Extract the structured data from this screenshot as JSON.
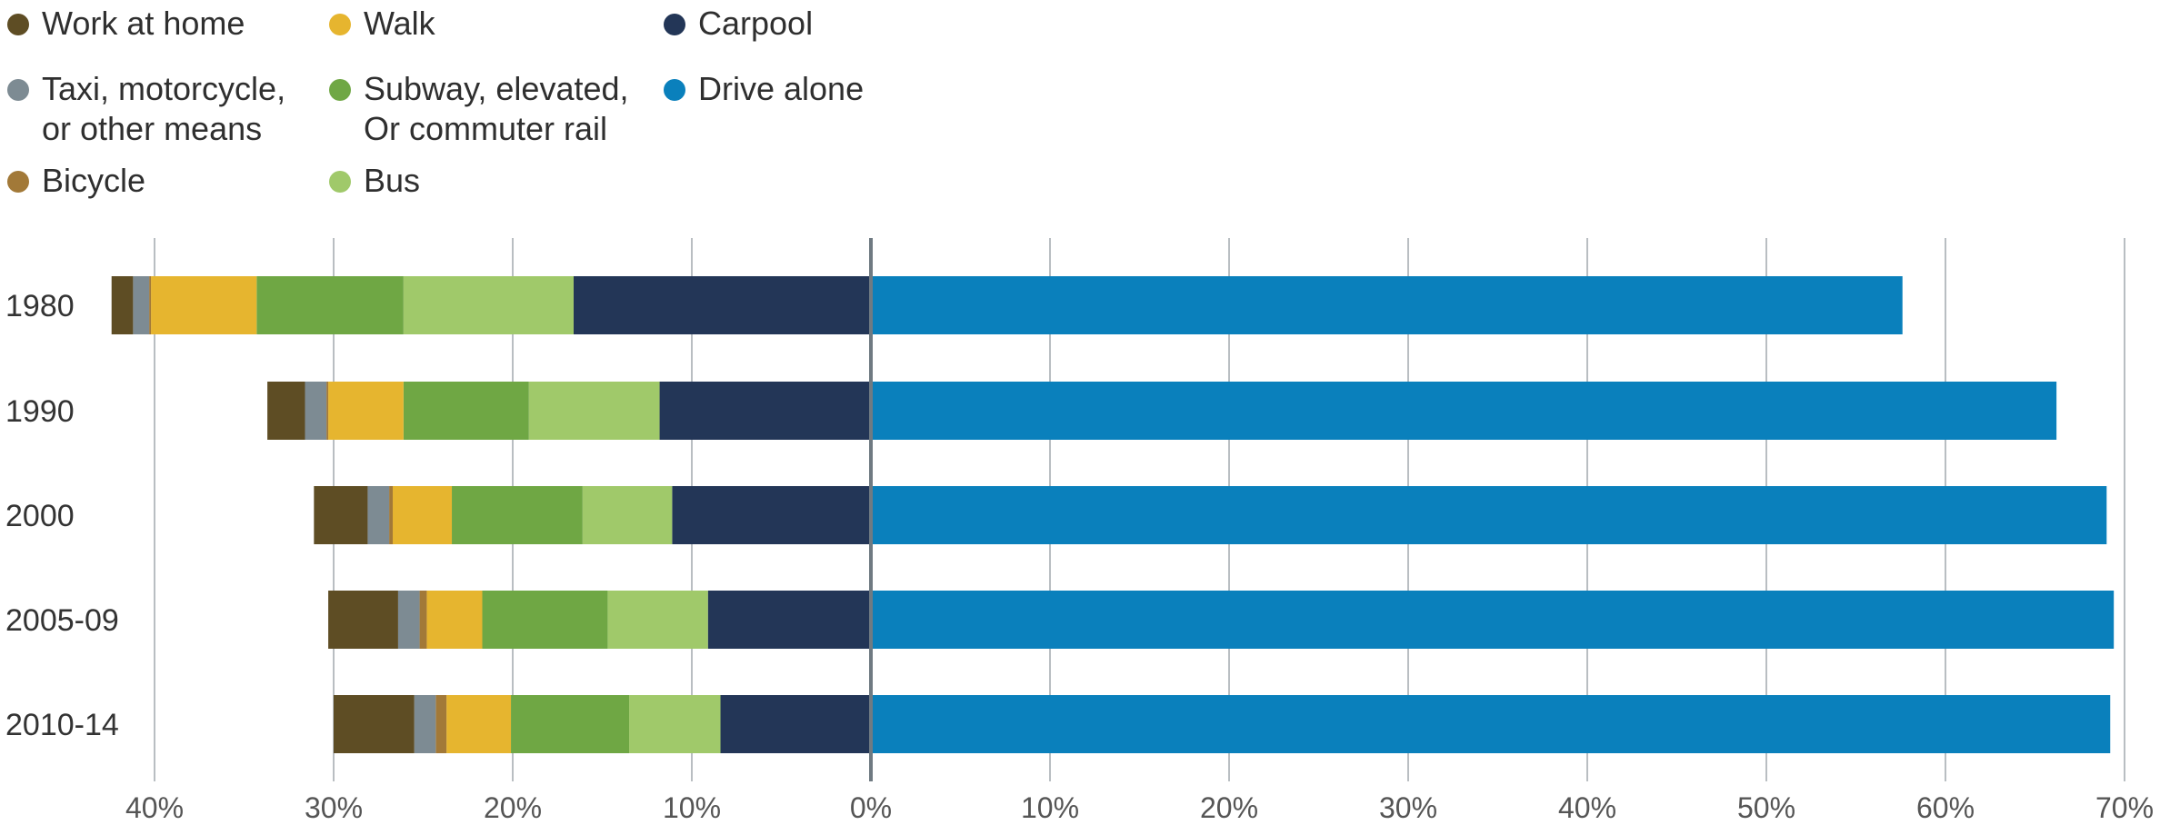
{
  "chart_data": {
    "type": "bar",
    "orientation": "horizontal-diverging",
    "title": "",
    "xlabel": "",
    "ylabel": "",
    "categories": [
      "1980",
      "1990",
      "2000",
      "2005-09",
      "2010-14"
    ],
    "x_ticks": [
      "40%",
      "30%",
      "20%",
      "10%",
      "0%",
      "10%",
      "20%",
      "30%",
      "40%",
      "50%",
      "60%",
      "70%"
    ],
    "xlim": [
      -40,
      70
    ],
    "grid": "vertical",
    "legend_position": "top-left",
    "left_series_order": [
      "Carpool",
      "Bus",
      "Subway, elevated,\nOr commuter rail",
      "Walk",
      "Bicycle",
      "Taxi, motorcycle,\nor other means",
      "Work at home"
    ],
    "series": [
      {
        "name": "Work at home",
        "color": "#5e4d24",
        "side": "left",
        "values": [
          1.2,
          2.1,
          3.0,
          3.9,
          4.5
        ]
      },
      {
        "name": "Walk",
        "color": "#e6b52f",
        "side": "left",
        "values": [
          5.9,
          4.2,
          3.3,
          3.1,
          3.6
        ]
      },
      {
        "name": "Carpool",
        "color": "#233657",
        "side": "left",
        "values": [
          16.6,
          11.8,
          11.1,
          9.1,
          8.4
        ]
      },
      {
        "name": "Taxi, motorcycle,\nor other means",
        "color": "#7d8b93",
        "side": "left",
        "values": [
          0.9,
          1.2,
          1.2,
          1.2,
          1.2
        ]
      },
      {
        "name": "Subway, elevated,\nOr commuter rail",
        "color": "#6fa744",
        "side": "left",
        "values": [
          8.2,
          7.0,
          7.3,
          7.0,
          6.6
        ]
      },
      {
        "name": "Drive alone",
        "color": "#0a80bc",
        "side": "right",
        "values": [
          57.6,
          66.2,
          69.0,
          69.4,
          69.2
        ]
      },
      {
        "name": "Bicycle",
        "color": "#a27938",
        "side": "left",
        "values": [
          0.1,
          0.1,
          0.2,
          0.4,
          0.6
        ]
      },
      {
        "name": "Bus",
        "color": "#a0c96a",
        "side": "left",
        "values": [
          9.5,
          7.3,
          5.0,
          5.6,
          5.1
        ]
      }
    ]
  }
}
